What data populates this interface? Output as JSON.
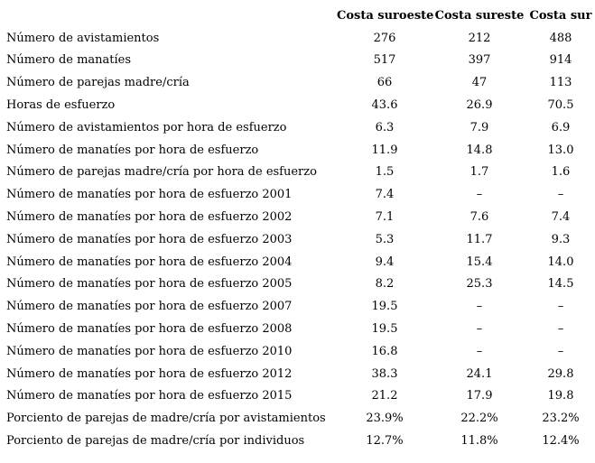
{
  "table": {
    "header": {
      "columns": [
        "Costa suroeste",
        "Costa sureste",
        "Costa sur"
      ]
    },
    "rows": [
      {
        "label": "Número de avistamientos",
        "values": [
          "276",
          "212",
          "488"
        ]
      },
      {
        "label": "Número de manatíes",
        "values": [
          "517",
          "397",
          "914"
        ]
      },
      {
        "label": "Número de parejas madre/cría",
        "values": [
          "66",
          "47",
          "113"
        ]
      },
      {
        "label": "Horas de esfuerzo",
        "values": [
          "43.6",
          "26.9",
          "70.5"
        ]
      },
      {
        "label": "Número de avistamientos por hora de esfuerzo",
        "values": [
          "6.3",
          "7.9",
          "6.9"
        ]
      },
      {
        "label": "Número de manatíes por hora de esfuerzo",
        "values": [
          "11.9",
          "14.8",
          "13.0"
        ]
      },
      {
        "label": "Número de parejas madre/cría por hora de esfuerzo",
        "values": [
          "1.5",
          "1.7",
          "1.6"
        ]
      },
      {
        "label": "Número de manatíes por hora de esfuerzo 2001",
        "values": [
          "7.4",
          "–",
          "–"
        ]
      },
      {
        "label": "Número de manatíes por hora de esfuerzo 2002",
        "values": [
          "7.1",
          "7.6",
          "7.4"
        ]
      },
      {
        "label": "Número de manatíes por hora de esfuerzo 2003",
        "values": [
          "5.3",
          "11.7",
          "9.3"
        ]
      },
      {
        "label": "Número de manatíes por hora de esfuerzo 2004",
        "values": [
          "9.4",
          "15.4",
          "14.0"
        ]
      },
      {
        "label": "Número de manatíes por hora de esfuerzo 2005",
        "values": [
          "8.2",
          "25.3",
          "14.5"
        ]
      },
      {
        "label": "Número de manatíes por hora de esfuerzo 2007",
        "values": [
          "19.5",
          "–",
          "–"
        ]
      },
      {
        "label": "Número de manatíes por hora de esfuerzo 2008",
        "values": [
          "19.5",
          "–",
          "–"
        ]
      },
      {
        "label": "Número de manatíes por hora de esfuerzo 2010",
        "values": [
          "16.8",
          "–",
          "–"
        ]
      },
      {
        "label": "Número de manatíes por hora de esfuerzo 2012",
        "values": [
          "38.3",
          "24.1",
          "29.8"
        ]
      },
      {
        "label": "Número de manatíes por hora de esfuerzo 2015",
        "values": [
          "21.2",
          "17.9",
          "19.8"
        ]
      },
      {
        "label": "Porciento de parejas de madre/cría por avistamientos",
        "values": [
          "23.9%",
          "22.2%",
          "23.2%"
        ]
      },
      {
        "label": "Porciento de parejas de madre/cría por individuos",
        "values": [
          "12.7%",
          "11.8%",
          "12.4%"
        ]
      }
    ],
    "colors": {
      "text": "#000000",
      "background": "#ffffff"
    }
  }
}
